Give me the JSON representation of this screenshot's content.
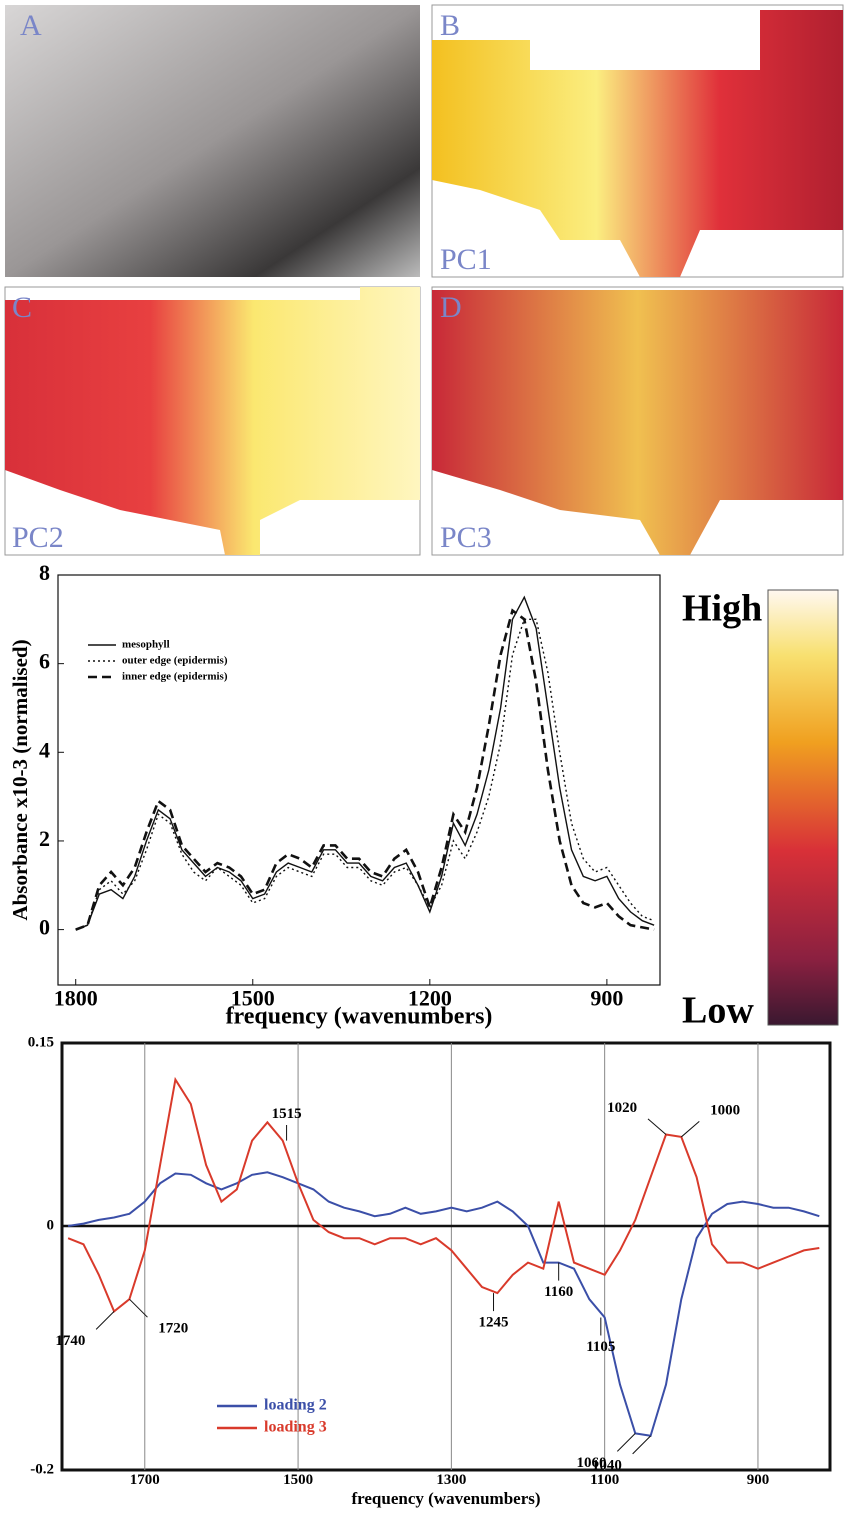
{
  "panels": [
    {
      "label": "A"
    },
    {
      "label": "B",
      "caption": "PC1"
    },
    {
      "label": "C",
      "caption": "PC2"
    },
    {
      "label": "D",
      "caption": "PC3"
    }
  ],
  "colorbar": {
    "high": "High",
    "low": "Low"
  },
  "chart_data": [
    {
      "type": "line",
      "xlabel": "frequency (wavenumbers)",
      "ylabel": "Absorbance x10-3 (normalised)",
      "xlim": [
        1830,
        810
      ],
      "ylim": [
        -1.25,
        8
      ],
      "xticks": [
        1800,
        1500,
        1200,
        900
      ],
      "yticks": [
        0,
        2,
        4,
        6,
        8
      ],
      "legend": "top-left",
      "grid": false,
      "x": [
        1800,
        1780,
        1760,
        1740,
        1720,
        1700,
        1680,
        1660,
        1640,
        1620,
        1600,
        1580,
        1560,
        1540,
        1520,
        1500,
        1480,
        1460,
        1440,
        1420,
        1400,
        1380,
        1360,
        1340,
        1320,
        1300,
        1280,
        1260,
        1240,
        1220,
        1200,
        1180,
        1160,
        1140,
        1120,
        1100,
        1080,
        1060,
        1040,
        1020,
        1000,
        980,
        960,
        940,
        920,
        900,
        880,
        860,
        840,
        820
      ],
      "series": [
        {
          "name": "mesophyll",
          "color": "#111111",
          "dash": "solid",
          "values": [
            0,
            0.1,
            0.8,
            0.9,
            0.7,
            1.2,
            2.0,
            2.7,
            2.5,
            1.8,
            1.5,
            1.2,
            1.4,
            1.3,
            1.1,
            0.7,
            0.8,
            1.3,
            1.5,
            1.4,
            1.3,
            1.8,
            1.8,
            1.5,
            1.5,
            1.2,
            1.1,
            1.4,
            1.5,
            1.0,
            0.4,
            1.2,
            2.4,
            1.9,
            2.6,
            3.6,
            5.0,
            7.0,
            7.5,
            6.8,
            5.0,
            3.2,
            1.8,
            1.2,
            1.1,
            1.2,
            0.7,
            0.4,
            0.2,
            0.1
          ]
        },
        {
          "name": "outer edge (epidermis)",
          "color": "#111111",
          "dash": "dotted",
          "values": [
            0,
            0.1,
            0.9,
            1.1,
            0.8,
            1.1,
            1.8,
            2.6,
            2.4,
            1.7,
            1.3,
            1.1,
            1.4,
            1.2,
            1.0,
            0.6,
            0.7,
            1.2,
            1.4,
            1.3,
            1.2,
            1.7,
            1.7,
            1.4,
            1.4,
            1.1,
            1.0,
            1.3,
            1.4,
            1.0,
            0.5,
            1.0,
            2.0,
            1.6,
            2.2,
            3.0,
            4.2,
            6.2,
            7.0,
            7.0,
            5.8,
            4.0,
            2.4,
            1.6,
            1.3,
            1.4,
            1.0,
            0.6,
            0.3,
            0.2
          ]
        },
        {
          "name": "inner edge (epidermis)",
          "color": "#111111",
          "dash": "dashed",
          "values": [
            0,
            0.1,
            1.0,
            1.3,
            1.0,
            1.4,
            2.2,
            2.9,
            2.7,
            1.9,
            1.6,
            1.3,
            1.5,
            1.4,
            1.2,
            0.8,
            0.9,
            1.5,
            1.7,
            1.6,
            1.4,
            1.9,
            1.9,
            1.6,
            1.6,
            1.3,
            1.2,
            1.6,
            1.8,
            1.3,
            0.5,
            1.4,
            2.6,
            2.2,
            3.2,
            4.6,
            6.2,
            7.2,
            7.0,
            5.6,
            3.6,
            2.0,
            1.0,
            0.6,
            0.5,
            0.6,
            0.3,
            0.1,
            0.05,
            0
          ]
        }
      ]
    },
    {
      "type": "line",
      "xlabel": "frequency (wavenumbers)",
      "xlim": [
        1808,
        806
      ],
      "ylim": [
        -0.2,
        0.15
      ],
      "xticks": [
        1700,
        1500,
        1300,
        1100,
        900
      ],
      "yticks": [
        -0.2,
        0,
        0.15
      ],
      "legend": "bottom-left",
      "grid": true,
      "zeroline": true,
      "x": [
        1800,
        1780,
        1760,
        1740,
        1720,
        1700,
        1680,
        1660,
        1640,
        1620,
        1600,
        1580,
        1560,
        1540,
        1520,
        1500,
        1480,
        1460,
        1440,
        1420,
        1400,
        1380,
        1360,
        1340,
        1320,
        1300,
        1280,
        1260,
        1240,
        1220,
        1200,
        1180,
        1160,
        1140,
        1120,
        1100,
        1080,
        1060,
        1040,
        1020,
        1000,
        980,
        960,
        940,
        920,
        900,
        880,
        860,
        840,
        820
      ],
      "series": [
        {
          "name": "loading 2",
          "color": "#3b4fa8",
          "dash": "solid",
          "values": [
            0,
            0.002,
            0.005,
            0.007,
            0.01,
            0.02,
            0.035,
            0.043,
            0.042,
            0.035,
            0.03,
            0.035,
            0.042,
            0.044,
            0.04,
            0.035,
            0.03,
            0.02,
            0.015,
            0.012,
            0.008,
            0.01,
            0.015,
            0.01,
            0.012,
            0.015,
            0.012,
            0.015,
            0.02,
            0.012,
            0,
            -0.03,
            -0.03,
            -0.035,
            -0.06,
            -0.075,
            -0.13,
            -0.17,
            -0.172,
            -0.13,
            -0.06,
            -0.01,
            0.01,
            0.018,
            0.02,
            0.018,
            0.015,
            0.015,
            0.012,
            0.008
          ]
        },
        {
          "name": "loading 3",
          "color": "#d93a2b",
          "dash": "solid",
          "values": [
            -0.01,
            -0.015,
            -0.04,
            -0.07,
            -0.06,
            -0.02,
            0.05,
            0.12,
            0.1,
            0.05,
            0.02,
            0.03,
            0.07,
            0.085,
            0.07,
            0.035,
            0.005,
            -0.005,
            -0.01,
            -0.01,
            -0.015,
            -0.01,
            -0.01,
            -0.015,
            -0.01,
            -0.02,
            -0.035,
            -0.05,
            -0.055,
            -0.04,
            -0.03,
            -0.035,
            0.02,
            -0.03,
            -0.035,
            -0.04,
            -0.02,
            0.005,
            0.04,
            0.075,
            0.073,
            0.04,
            -0.015,
            -0.03,
            -0.03,
            -0.035,
            -0.03,
            -0.025,
            -0.02,
            -0.018
          ]
        }
      ],
      "annotations": [
        {
          "x": 1740,
          "y": -0.07
        },
        {
          "x": 1720,
          "y": -0.06
        },
        {
          "x": 1515,
          "y": 0.07
        },
        {
          "x": 1245,
          "y": -0.055
        },
        {
          "x": 1160,
          "y": -0.03
        },
        {
          "x": 1105,
          "y": -0.075
        },
        {
          "x": 1060,
          "y": -0.17
        },
        {
          "x": 1040,
          "y": -0.172
        },
        {
          "x": 1020,
          "y": 0.075
        },
        {
          "x": 1000,
          "y": 0.073
        }
      ]
    }
  ]
}
